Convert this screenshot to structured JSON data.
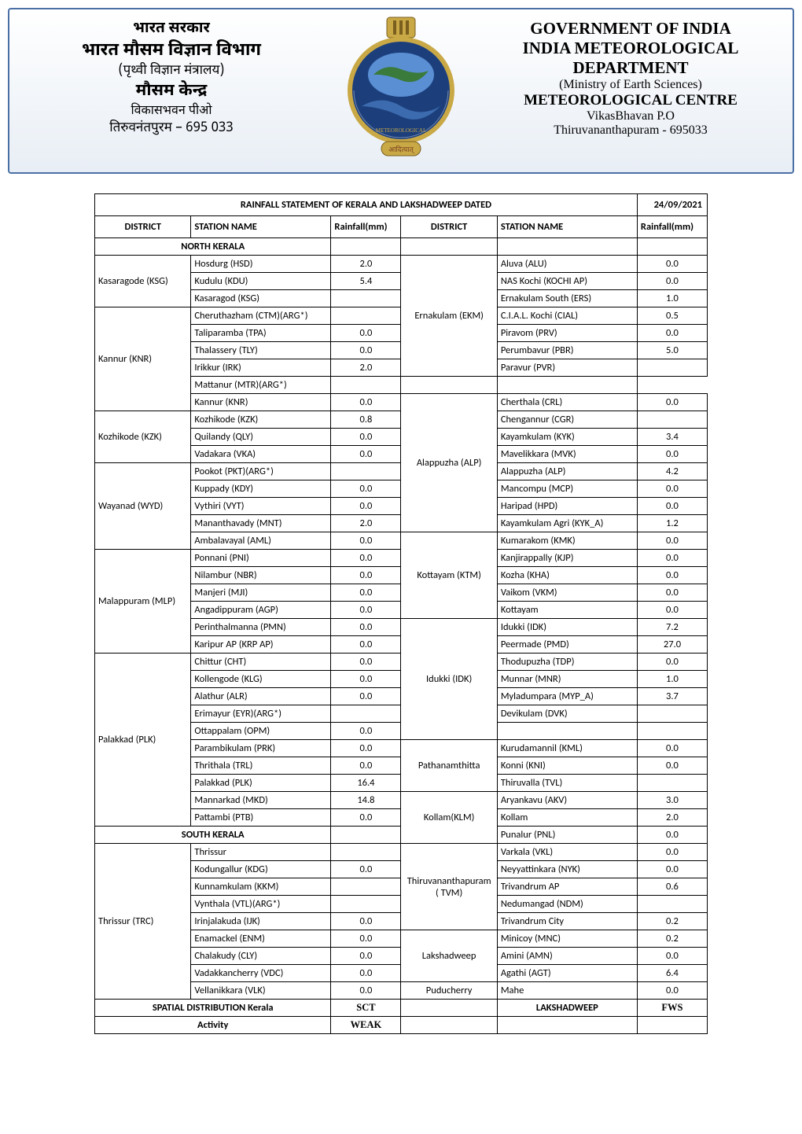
{
  "header": {
    "left": {
      "line1": "भारत सरकार",
      "line2": "भारत मौसम विज्ञान विभाग",
      "line3": "(पृथ्वी विज्ञान मंत्रालय)",
      "line4": "मौसम केन्द्र",
      "line5": "विकासभवन पीओ",
      "line6": "तिरुवनंतपुरम – 695 033"
    },
    "right": {
      "r1": "GOVERNMENT OF INDIA",
      "r2": "INDIA METEOROLOGICAL",
      "r3": "DEPARTMENT",
      "r4": "(Ministry of Earth Sciences)",
      "r5": "METEOROLOGICAL CENTRE",
      "r6": "VikasBhavan P.O",
      "r7": "Thiruvananthapuram - 695033"
    }
  },
  "colors": {
    "header_border": "#4a6fa5",
    "header_bg_top": "#ffffff",
    "header_bg_bot": "#e8eef5",
    "emblem_gold": "#c9a846",
    "emblem_blue": "#1c3f7c",
    "emblem_green": "#3a7a3a",
    "table_border": "#000000"
  },
  "table": {
    "title": "RAINFALL STATEMENT OF KERALA AND LAKSHADWEEP   DATED",
    "date": "24/09/2021",
    "headers": {
      "district": "DISTRICT",
      "station": "STATION NAME",
      "rain": "Rainfall(mm)"
    },
    "sections": {
      "north": "NORTH  KERALA",
      "south": "SOUTH  KERALA"
    },
    "rows": [
      {
        "ld": "Kasaragode (KSG)",
        "ls": "Hosdurg (HSD)",
        "lv": "2.0",
        "rd": "Ernakulam (EKM)",
        "rs": "Aluva (ALU)",
        "rv": "0.0",
        "ld_span": 3,
        "rd_span": 7
      },
      {
        "ls": "Kudulu (KDU)",
        "lv": "5.4",
        "rs": "NAS Kochi (KOCHI AP)",
        "rv": "0.0"
      },
      {
        "ls": "Kasaragod (KSG)",
        "lv": "",
        "rs": "Ernakulam South (ERS)",
        "rv": "1.0"
      },
      {
        "ld": "Kannur (KNR)",
        "ls": "Cheruthazham (CTM)(ARG*)",
        "lv": "",
        "rs": "C.I.A.L. Kochi (CIAL)",
        "rv": "0.5",
        "ld_span": 6
      },
      {
        "ls": "Taliparamba (TPA)",
        "lv": "0.0",
        "rs": "Piravom (PRV)",
        "rv": "0.0"
      },
      {
        "ls": "Thalassery (TLY)",
        "lv": "0.0",
        "rs": "Perumbavur (PBR)",
        "rv": "5.0"
      },
      {
        "ls": "Irikkur (IRK)",
        "lv": "2.0",
        "rs": "Paravur (PVR)",
        "rv": ""
      },
      {
        "ls": "Mattanur (MTR)(ARG*)",
        "lv": "",
        "rs": "",
        "rv": ""
      },
      {
        "ls": "Kannur (KNR)",
        "lv": "0.0",
        "rd": "Alappuzha (ALP)",
        "rs": "Cherthala (CRL)",
        "rv": "0.0",
        "rd_span": 8
      },
      {
        "ld": "Kozhikode (KZK)",
        "ls": "Kozhikode (KZK)",
        "lv": "0.8",
        "rs": "Chengannur (CGR)",
        "rv": "",
        "ld_span": 3
      },
      {
        "ls": "Quilandy (QLY)",
        "lv": "0.0",
        "rs": "Kayamkulam (KYK)",
        "rv": "3.4"
      },
      {
        "ls": "Vadakara (VKA)",
        "lv": "0.0",
        "rs": "Mavelikkara (MVK)",
        "rv": "0.0"
      },
      {
        "ld": "Wayanad (WYD)",
        "ls": "Pookot (PKT)(ARG*)",
        "lv": "",
        "rs": "Alappuzha (ALP)",
        "rv": "4.2",
        "ld_span": 5
      },
      {
        "ls": "Kuppady (KDY)",
        "lv": "0.0",
        "rs": "Mancompu (MCP)",
        "rv": "0.0"
      },
      {
        "ls": "Vythiri (VYT)",
        "lv": "0.0",
        "rs": "Haripad (HPD)",
        "rv": "0.0"
      },
      {
        "ls": "Mananthavady (MNT)",
        "lv": "2.0",
        "rs": "Kayamkulam Agri (KYK_A)",
        "rv": "1.2"
      },
      {
        "ls": "Ambalavayal (AML)",
        "lv": "0.0",
        "rd": "Kottayam (KTM)",
        "rs": "Kumarakom (KMK)",
        "rv": "0.0",
        "rd_span": 5
      },
      {
        "ld": "Malappuram   (MLP)",
        "ls": "Ponnani (PNI)",
        "lv": "0.0",
        "rs": "Kanjirappally (KJP)",
        "rv": "0.0",
        "ld_span": 6
      },
      {
        "ls": "Nilambur (NBR)",
        "lv": "0.0",
        "rs": "Kozha (KHA)",
        "rv": "0.0"
      },
      {
        "ls": "Manjeri (MJI)",
        "lv": "0.0",
        "rs": "Vaikom (VKM)",
        "rv": "0.0"
      },
      {
        "ls": "Angadippuram (AGP)",
        "lv": "0.0",
        "rs": "Kottayam",
        "rv": "0.0"
      },
      {
        "ls": "Perinthalmanna (PMN)",
        "lv": "0.0",
        "rd": "Idukki (IDK)",
        "rs": "Idukki (IDK)",
        "rv": "7.2",
        "rd_span": 7
      },
      {
        "ls": "Karipur AP (KRP AP)",
        "lv": "0.0",
        "rs": "Peermade (PMD)",
        "rv": "27.0"
      },
      {
        "ld": "Palakkad (PLK)",
        "ls": "Chittur (CHT)",
        "lv": "0.0",
        "rs": "Thodupuzha (TDP)",
        "rv": "0.0",
        "ld_span": 10
      },
      {
        "ls": "Kollengode (KLG)",
        "lv": "0.0",
        "rs": "Munnar (MNR)",
        "rv": "1.0"
      },
      {
        "ls": "Alathur (ALR)",
        "lv": "0.0",
        "rs": "Myladumpara (MYP_A)",
        "rv": "3.7"
      },
      {
        "ls": "Erimayur (EYR)(ARG*)",
        "lv": "",
        "rs": "Devikulam (DVK)",
        "rv": ""
      },
      {
        "ls": "Ottappalam (OPM)",
        "lv": "0.0",
        "rs": "",
        "rv": ""
      },
      {
        "ls": "Parambikulam (PRK)",
        "lv": "0.0",
        "rd": "Pathanamthitta",
        "rs": "Kurudamannil (KML)",
        "rv": "0.0",
        "rd_span": 3
      },
      {
        "ls": "Thrithala (TRL)",
        "lv": "0.0",
        "rs": "Konni (KNI)",
        "rv": "0.0"
      },
      {
        "ls": "Palakkad (PLK)",
        "lv": "16.4",
        "rs": "Thiruvalla (TVL)",
        "rv": ""
      },
      {
        "ls": "Mannarkad (MKD)",
        "lv": "14.8",
        "rd": "Kollam(KLM)",
        "rs": "Aryankavu (AKV)",
        "rv": "3.0",
        "rd_span": 3
      },
      {
        "ls": "Pattambi (PTB)",
        "lv": "0.0",
        "rs": "Kollam",
        "rv": "2.0"
      },
      {
        "south_row": true,
        "rs": "Punalur (PNL)",
        "rv": "0.0"
      },
      {
        "ld": "Thrissur (TRC)",
        "ls": "Thrissur",
        "lv": "",
        "rd": "Thiruvananthapuram ( TVM)",
        "rs": "Varkala (VKL)",
        "rv": "0.0",
        "ld_span": 9,
        "rd_span": 5
      },
      {
        "ls": "Kodungallur (KDG)",
        "lv": "0.0",
        "rs": "Neyyattinkara (NYK)",
        "rv": "0.0"
      },
      {
        "ls": "Kunnamkulam (KKM)",
        "lv": "",
        "rs": "Trivandrum AP",
        "rv": "0.6"
      },
      {
        "ls": "Vynthala (VTL)(ARG*)",
        "lv": "",
        "rs": "Nedumangad (NDM)",
        "rv": ""
      },
      {
        "ls": "Irinjalakuda (IJK)",
        "lv": "0.0",
        "rs": "Trivandrum City",
        "rv": "0.2"
      },
      {
        "ls": "Enamackel (ENM)",
        "lv": "0.0",
        "rd": "Lakshadweep",
        "rs": "Minicoy (MNC)",
        "rv": "0.2",
        "rd_span": 3
      },
      {
        "ls": "Chalakudy (CLY)",
        "lv": "0.0",
        "rs": "Amini (AMN)",
        "rv": "0.0"
      },
      {
        "ls": "Vadakkancherry (VDC)",
        "lv": "0.0",
        "rs": "Agathi (AGT)",
        "rv": "6.4"
      },
      {
        "ls": "Vellanikkara (VLK)",
        "lv": "0.0",
        "rd": "Puducherry",
        "rs": "Mahe",
        "rv": "0.0",
        "rd_span": 1
      }
    ],
    "footer": {
      "spatial_label": "SPATIAL DISTRIBUTION Kerala",
      "spatial_val": "SCT",
      "laksh_label": "LAKSHADWEEP",
      "laksh_val": "FWS",
      "activity_label": "Activity",
      "activity_val": "WEAK"
    }
  }
}
